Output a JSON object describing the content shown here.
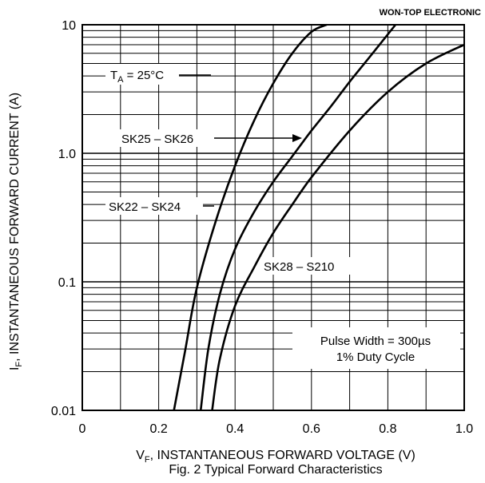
{
  "watermark": "WON-TOP ELECTRONIC",
  "caption": "Fig. 2 Typical Forward Characteristics",
  "xlabel": {
    "main": "V",
    "sub": "F",
    "rest": ", INSTANTANEOUS FORWARD VOLTAGE (V)"
  },
  "ylabel": {
    "main": "I",
    "sub": "F",
    "rest": ", INSTANTANEOUS FORWARD CURRENT (A)"
  },
  "ta_label": {
    "main": "T",
    "sub": "A",
    "rest": " = 25°C"
  },
  "pulse_note": [
    "Pulse Width = 300µs",
    "1% Duty Cycle"
  ],
  "chart_data": {
    "type": "line",
    "x_scale": "linear",
    "y_scale": "log",
    "xlim": [
      0,
      1.0
    ],
    "ylim": [
      0.01,
      10
    ],
    "x_ticks": [
      "0",
      "0.2",
      "0.4",
      "0.6",
      "0.8",
      "1.0"
    ],
    "y_ticks": [
      "10",
      "1.0",
      "0.1",
      "0.01"
    ],
    "grid": true,
    "series": [
      {
        "name": "SK22 – SK24",
        "x": [
          0.24,
          0.27,
          0.3,
          0.35,
          0.4,
          0.45,
          0.5,
          0.55,
          0.6,
          0.64
        ],
        "y": [
          0.01,
          0.03,
          0.09,
          0.3,
          0.8,
          1.8,
          3.5,
          6.0,
          8.8,
          10.0
        ]
      },
      {
        "name": "SK25 – SK26",
        "x": [
          0.31,
          0.33,
          0.36,
          0.4,
          0.45,
          0.5,
          0.55,
          0.6,
          0.65,
          0.7,
          0.75,
          0.82
        ],
        "y": [
          0.01,
          0.03,
          0.08,
          0.18,
          0.35,
          0.6,
          0.95,
          1.5,
          2.3,
          3.6,
          5.5,
          10.0
        ]
      },
      {
        "name": "SK28 – S210",
        "x": [
          0.34,
          0.36,
          0.4,
          0.45,
          0.5,
          0.55,
          0.6,
          0.7,
          0.8,
          0.9,
          1.0
        ],
        "y": [
          0.01,
          0.025,
          0.065,
          0.13,
          0.24,
          0.4,
          0.65,
          1.5,
          3.0,
          5.0,
          7.0
        ]
      }
    ]
  }
}
